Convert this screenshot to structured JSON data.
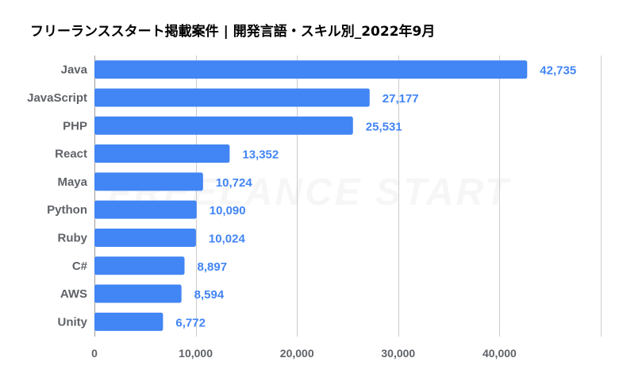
{
  "chart_data": {
    "type": "bar",
    "orientation": "horizontal",
    "title": "フリーランススタート掲載案件 | 開発言語・スキル別_2022年9月",
    "categories": [
      "Java",
      "JavaScript",
      "PHP",
      "React",
      "Maya",
      "Python",
      "Ruby",
      "C#",
      "AWS",
      "Unity"
    ],
    "values": [
      42735,
      27177,
      25531,
      13352,
      10724,
      10090,
      10024,
      8897,
      8594,
      6772
    ],
    "value_labels": [
      "42,735",
      "27,177",
      "25,531",
      "13,352",
      "10,724",
      "10,090",
      "10,024",
      "8,897",
      "8,594",
      "6,772"
    ],
    "x_ticks": [
      0,
      10000,
      20000,
      30000,
      40000
    ],
    "x_tick_labels": [
      "0",
      "10,000",
      "20,000",
      "30,000",
      "40,000"
    ],
    "xlim": [
      0,
      50000
    ],
    "xlabel": "",
    "ylabel": "",
    "grid": true,
    "legend": "none",
    "colors": {
      "bar": "#4285f4",
      "value_label": "#4285f4",
      "grid": "#cccccc",
      "axis_text": "#5f6368",
      "title": "#000000"
    }
  },
  "watermark": "FREELANCE START"
}
